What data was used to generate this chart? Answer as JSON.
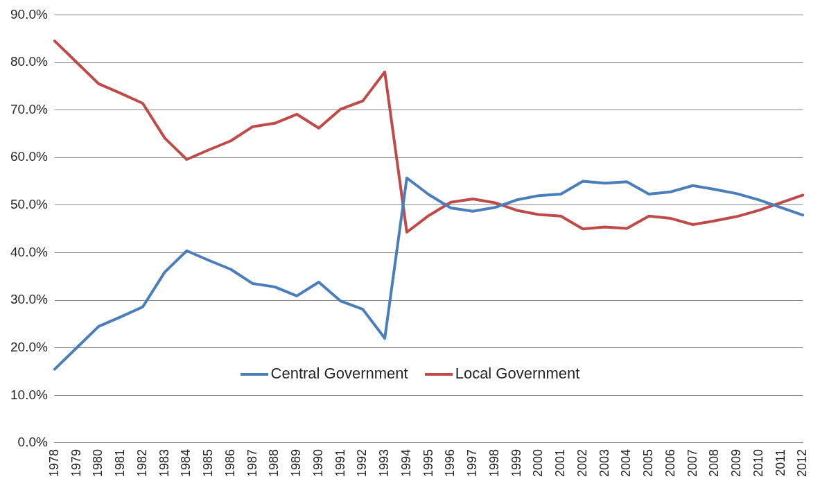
{
  "chart_data": {
    "type": "line",
    "categories": [
      "1978",
      "1979",
      "1980",
      "1981",
      "1982",
      "1983",
      "1984",
      "1985",
      "1986",
      "1987",
      "1988",
      "1989",
      "1990",
      "1991",
      "1992",
      "1993",
      "1994",
      "1995",
      "1996",
      "1997",
      "1998",
      "1999",
      "2000",
      "2001",
      "2002",
      "2003",
      "2004",
      "2005",
      "2006",
      "2007",
      "2008",
      "2009",
      "2010",
      "2011",
      "2012"
    ],
    "series": [
      {
        "name": "Central Government",
        "color": "#4a7ebb",
        "values": [
          15.5,
          20.0,
          24.5,
          26.5,
          28.6,
          35.9,
          40.4,
          38.4,
          36.5,
          33.5,
          32.8,
          30.9,
          33.8,
          29.8,
          28.1,
          22.0,
          55.7,
          52.2,
          49.4,
          48.7,
          49.5,
          51.1,
          52.0,
          52.3,
          55.0,
          54.6,
          54.9,
          52.3,
          52.8,
          54.1,
          53.3,
          52.4,
          51.1,
          49.5,
          47.9
        ]
      },
      {
        "name": "Local Government",
        "color": "#be4b48",
        "values": [
          84.5,
          80.0,
          75.5,
          73.5,
          71.4,
          64.1,
          59.6,
          61.6,
          63.5,
          66.5,
          67.2,
          69.1,
          66.2,
          70.2,
          71.9,
          78.0,
          44.3,
          47.8,
          50.6,
          51.3,
          50.5,
          48.9,
          48.0,
          47.7,
          45.0,
          45.4,
          45.1,
          47.7,
          47.2,
          45.9,
          46.7,
          47.6,
          48.9,
          50.5,
          52.1
        ]
      }
    ],
    "ylim": [
      0,
      90
    ],
    "yticks": [
      {
        "value": 0,
        "label": "0.0%"
      },
      {
        "value": 10,
        "label": "10.0%"
      },
      {
        "value": 20,
        "label": "20.0%"
      },
      {
        "value": 30,
        "label": "30.0%"
      },
      {
        "value": 40,
        "label": "40.0%"
      },
      {
        "value": 50,
        "label": "50.0%"
      },
      {
        "value": 60,
        "label": "60.0%"
      },
      {
        "value": 70,
        "label": "70.0%"
      },
      {
        "value": 80,
        "label": "80.0%"
      },
      {
        "value": 90,
        "label": "90.0%"
      }
    ],
    "grid": "y",
    "legend": "bottom",
    "marker": "none",
    "line_style": "solid"
  }
}
